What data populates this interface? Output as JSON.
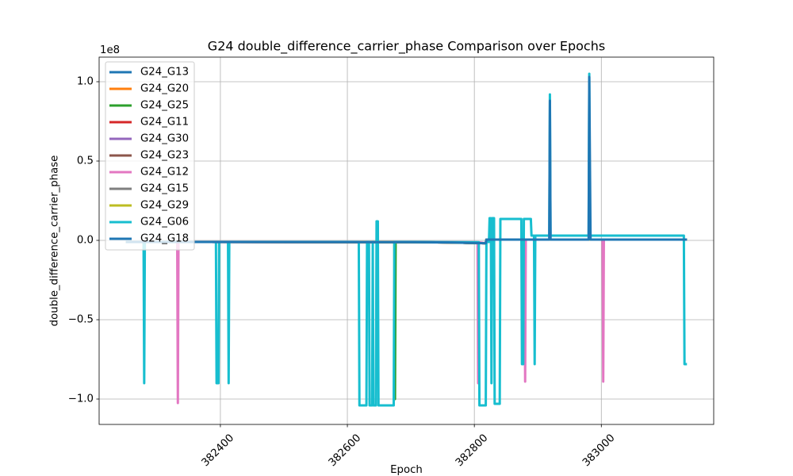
{
  "chart_data": {
    "type": "line",
    "title": "G24 double_difference_carrier_phase Comparison over Epochs",
    "xlabel": "Epoch",
    "ylabel": "double_difference_carrier_phase",
    "y_offset_text": "1e8",
    "xlim": [
      382209,
      383177
    ],
    "ylim": [
      -1.16,
      1.155
    ],
    "xticks": [
      382400,
      382600,
      382800,
      383000
    ],
    "xtick_labels": [
      "382400",
      "382600",
      "382800",
      "383000"
    ],
    "yticks": [
      1.0,
      0.5,
      0.0,
      -0.5,
      -1.0
    ],
    "ytick_labels": [
      "1.0",
      "0.5",
      "0.0",
      "−0.5",
      "−1.0"
    ],
    "grid": true,
    "legend_position": "upper left",
    "series": [
      {
        "name": "G24_G13",
        "color": "#1f77b4",
        "points": [
          [
            382253,
            -0.01
          ],
          [
            382700,
            -0.011
          ],
          [
            382760,
            -0.013
          ],
          [
            382818,
            -0.018
          ],
          [
            382819,
            0.005
          ],
          [
            383133,
            0.005
          ]
        ]
      },
      {
        "name": "G24_G20",
        "color": "#ff7f0e",
        "points": [
          [
            382253,
            -0.01
          ],
          [
            382700,
            -0.011
          ],
          [
            382760,
            -0.013
          ],
          [
            382818,
            -0.018
          ],
          [
            382819,
            0.005
          ],
          [
            383133,
            0.005
          ]
        ]
      },
      {
        "name": "G24_G25",
        "color": "#2ca02c",
        "points": [
          [
            382253,
            -0.01
          ],
          [
            382674,
            -0.01
          ],
          [
            382675,
            -1.0
          ],
          [
            382676,
            -0.01
          ],
          [
            382760,
            -0.013
          ],
          [
            382818,
            -0.018
          ],
          [
            382819,
            0.005
          ],
          [
            383133,
            0.005
          ]
        ]
      },
      {
        "name": "G24_G11",
        "color": "#d62728",
        "points": [
          [
            382253,
            -0.01
          ],
          [
            382700,
            -0.011
          ],
          [
            382760,
            -0.013
          ],
          [
            382818,
            -0.018
          ],
          [
            382819,
            0.005
          ],
          [
            383133,
            0.005
          ]
        ]
      },
      {
        "name": "G24_G30",
        "color": "#9467bd",
        "points": [
          [
            382253,
            -0.01
          ],
          [
            382700,
            -0.011
          ],
          [
            382760,
            -0.013
          ],
          [
            382818,
            -0.018
          ],
          [
            382819,
            0.005
          ],
          [
            383133,
            0.005
          ]
        ]
      },
      {
        "name": "G24_G23",
        "color": "#8c564b",
        "points": [
          [
            382253,
            -0.01
          ],
          [
            382700,
            -0.011
          ],
          [
            382760,
            -0.013
          ],
          [
            382818,
            -0.018
          ],
          [
            382819,
            0.005
          ],
          [
            383133,
            0.005
          ]
        ]
      },
      {
        "name": "G24_G12",
        "color": "#e377c2",
        "points": [
          [
            382253,
            -0.01
          ],
          [
            382332,
            -0.01
          ],
          [
            382333,
            -1.025
          ],
          [
            382334,
            -0.01
          ],
          [
            382805,
            -0.012
          ],
          [
            382806,
            -0.9
          ],
          [
            382807,
            -0.012
          ],
          [
            382818,
            -0.018
          ],
          [
            382819,
            0.005
          ],
          [
            382879,
            0.005
          ],
          [
            382880,
            -0.89
          ],
          [
            382881,
            0.005
          ],
          [
            383002,
            0.005
          ],
          [
            383003,
            -0.89
          ],
          [
            383004,
            0.005
          ],
          [
            383133,
            0.005
          ]
        ]
      },
      {
        "name": "G24_G15",
        "color": "#7f7f7f",
        "points": [
          [
            382253,
            -0.01
          ],
          [
            382700,
            -0.011
          ],
          [
            382760,
            -0.013
          ],
          [
            382818,
            -0.018
          ],
          [
            382819,
            0.005
          ],
          [
            383133,
            0.005
          ]
        ]
      },
      {
        "name": "G24_G29",
        "color": "#bcbd22",
        "points": [
          [
            382253,
            -0.01
          ],
          [
            382700,
            -0.011
          ],
          [
            382760,
            -0.013
          ],
          [
            382818,
            -0.018
          ],
          [
            382819,
            0.005
          ],
          [
            383133,
            0.005
          ]
        ]
      },
      {
        "name": "G24_G06",
        "color": "#17becf",
        "points": [
          [
            382253,
            -0.01
          ],
          [
            382279,
            -0.01
          ],
          [
            382280,
            -0.9
          ],
          [
            382281,
            -0.01
          ],
          [
            382393,
            -0.01
          ],
          [
            382394,
            -0.9
          ],
          [
            382397,
            -0.9
          ],
          [
            382398,
            -0.01
          ],
          [
            382412,
            -0.01
          ],
          [
            382413,
            -0.9
          ],
          [
            382414,
            -0.01
          ],
          [
            382618,
            -0.01
          ],
          [
            382619,
            -1.04
          ],
          [
            382630,
            -1.04
          ],
          [
            382631,
            -0.01
          ],
          [
            382634,
            -0.01
          ],
          [
            382635,
            -1.04
          ],
          [
            382639,
            -1.04
          ],
          [
            382640,
            -0.01
          ],
          [
            382641,
            -1.04
          ],
          [
            382645,
            -1.04
          ],
          [
            382646,
            0.12
          ],
          [
            382648,
            0.12
          ],
          [
            382649,
            -1.04
          ],
          [
            382673,
            -1.04
          ],
          [
            382674,
            -0.01
          ],
          [
            382807,
            -0.012
          ],
          [
            382808,
            -1.04
          ],
          [
            382818,
            -1.04
          ],
          [
            382819,
            -0.01
          ],
          [
            382823,
            -0.01
          ],
          [
            382824,
            0.14
          ],
          [
            382826,
            0.14
          ],
          [
            382827,
            -0.9
          ],
          [
            382828,
            0.14
          ],
          [
            382831,
            0.14
          ],
          [
            382832,
            -1.03
          ],
          [
            382840,
            -1.03
          ],
          [
            382841,
            0.135
          ],
          [
            382874,
            0.135
          ],
          [
            382875,
            -0.78
          ],
          [
            382877,
            -0.78
          ],
          [
            382878,
            0.135
          ],
          [
            382889,
            0.135
          ],
          [
            382890,
            0.03
          ],
          [
            382894,
            0.03
          ],
          [
            382895,
            -0.78
          ],
          [
            382896,
            0.03
          ],
          [
            382918,
            0.03
          ],
          [
            382919,
            0.92
          ],
          [
            382920,
            0.03
          ],
          [
            382980,
            0.03
          ],
          [
            382981,
            1.05
          ],
          [
            382982,
            0.03
          ],
          [
            383130,
            0.03
          ],
          [
            383131,
            -0.78
          ],
          [
            383133,
            -0.78
          ]
        ]
      },
      {
        "name": "G24_G18",
        "color": "#1f77b4",
        "points": [
          [
            382253,
            -0.01
          ],
          [
            382700,
            -0.011
          ],
          [
            382760,
            -0.013
          ],
          [
            382818,
            -0.018
          ],
          [
            382819,
            0.005
          ],
          [
            382918,
            0.005
          ],
          [
            382919,
            0.88
          ],
          [
            382920,
            0.005
          ],
          [
            382980,
            0.005
          ],
          [
            382981,
            1.03
          ],
          [
            382983,
            0.005
          ],
          [
            383133,
            0.005
          ]
        ]
      }
    ]
  }
}
